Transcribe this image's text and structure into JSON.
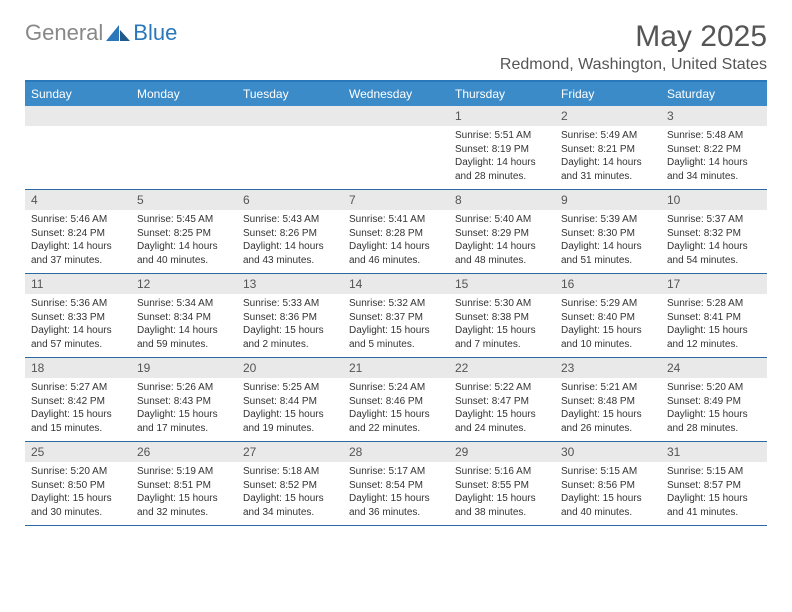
{
  "brand": {
    "part1": "General",
    "part2": "Blue"
  },
  "month_title": "May 2025",
  "location": "Redmond, Washington, United States",
  "colors": {
    "header_bg": "#3b8bc9",
    "rule": "#2b6aa0",
    "daynum_bg": "#e9e9e9"
  },
  "dow": [
    "Sunday",
    "Monday",
    "Tuesday",
    "Wednesday",
    "Thursday",
    "Friday",
    "Saturday"
  ],
  "weeks": [
    [
      null,
      null,
      null,
      null,
      {
        "n": "1",
        "sr": "5:51 AM",
        "ss": "8:19 PM",
        "dl": "14 hours and 28 minutes."
      },
      {
        "n": "2",
        "sr": "5:49 AM",
        "ss": "8:21 PM",
        "dl": "14 hours and 31 minutes."
      },
      {
        "n": "3",
        "sr": "5:48 AM",
        "ss": "8:22 PM",
        "dl": "14 hours and 34 minutes."
      }
    ],
    [
      {
        "n": "4",
        "sr": "5:46 AM",
        "ss": "8:24 PM",
        "dl": "14 hours and 37 minutes."
      },
      {
        "n": "5",
        "sr": "5:45 AM",
        "ss": "8:25 PM",
        "dl": "14 hours and 40 minutes."
      },
      {
        "n": "6",
        "sr": "5:43 AM",
        "ss": "8:26 PM",
        "dl": "14 hours and 43 minutes."
      },
      {
        "n": "7",
        "sr": "5:41 AM",
        "ss": "8:28 PM",
        "dl": "14 hours and 46 minutes."
      },
      {
        "n": "8",
        "sr": "5:40 AM",
        "ss": "8:29 PM",
        "dl": "14 hours and 48 minutes."
      },
      {
        "n": "9",
        "sr": "5:39 AM",
        "ss": "8:30 PM",
        "dl": "14 hours and 51 minutes."
      },
      {
        "n": "10",
        "sr": "5:37 AM",
        "ss": "8:32 PM",
        "dl": "14 hours and 54 minutes."
      }
    ],
    [
      {
        "n": "11",
        "sr": "5:36 AM",
        "ss": "8:33 PM",
        "dl": "14 hours and 57 minutes."
      },
      {
        "n": "12",
        "sr": "5:34 AM",
        "ss": "8:34 PM",
        "dl": "14 hours and 59 minutes."
      },
      {
        "n": "13",
        "sr": "5:33 AM",
        "ss": "8:36 PM",
        "dl": "15 hours and 2 minutes."
      },
      {
        "n": "14",
        "sr": "5:32 AM",
        "ss": "8:37 PM",
        "dl": "15 hours and 5 minutes."
      },
      {
        "n": "15",
        "sr": "5:30 AM",
        "ss": "8:38 PM",
        "dl": "15 hours and 7 minutes."
      },
      {
        "n": "16",
        "sr": "5:29 AM",
        "ss": "8:40 PM",
        "dl": "15 hours and 10 minutes."
      },
      {
        "n": "17",
        "sr": "5:28 AM",
        "ss": "8:41 PM",
        "dl": "15 hours and 12 minutes."
      }
    ],
    [
      {
        "n": "18",
        "sr": "5:27 AM",
        "ss": "8:42 PM",
        "dl": "15 hours and 15 minutes."
      },
      {
        "n": "19",
        "sr": "5:26 AM",
        "ss": "8:43 PM",
        "dl": "15 hours and 17 minutes."
      },
      {
        "n": "20",
        "sr": "5:25 AM",
        "ss": "8:44 PM",
        "dl": "15 hours and 19 minutes."
      },
      {
        "n": "21",
        "sr": "5:24 AM",
        "ss": "8:46 PM",
        "dl": "15 hours and 22 minutes."
      },
      {
        "n": "22",
        "sr": "5:22 AM",
        "ss": "8:47 PM",
        "dl": "15 hours and 24 minutes."
      },
      {
        "n": "23",
        "sr": "5:21 AM",
        "ss": "8:48 PM",
        "dl": "15 hours and 26 minutes."
      },
      {
        "n": "24",
        "sr": "5:20 AM",
        "ss": "8:49 PM",
        "dl": "15 hours and 28 minutes."
      }
    ],
    [
      {
        "n": "25",
        "sr": "5:20 AM",
        "ss": "8:50 PM",
        "dl": "15 hours and 30 minutes."
      },
      {
        "n": "26",
        "sr": "5:19 AM",
        "ss": "8:51 PM",
        "dl": "15 hours and 32 minutes."
      },
      {
        "n": "27",
        "sr": "5:18 AM",
        "ss": "8:52 PM",
        "dl": "15 hours and 34 minutes."
      },
      {
        "n": "28",
        "sr": "5:17 AM",
        "ss": "8:54 PM",
        "dl": "15 hours and 36 minutes."
      },
      {
        "n": "29",
        "sr": "5:16 AM",
        "ss": "8:55 PM",
        "dl": "15 hours and 38 minutes."
      },
      {
        "n": "30",
        "sr": "5:15 AM",
        "ss": "8:56 PM",
        "dl": "15 hours and 40 minutes."
      },
      {
        "n": "31",
        "sr": "5:15 AM",
        "ss": "8:57 PM",
        "dl": "15 hours and 41 minutes."
      }
    ]
  ],
  "labels": {
    "sunrise": "Sunrise: ",
    "sunset": "Sunset: ",
    "daylight": "Daylight: "
  }
}
